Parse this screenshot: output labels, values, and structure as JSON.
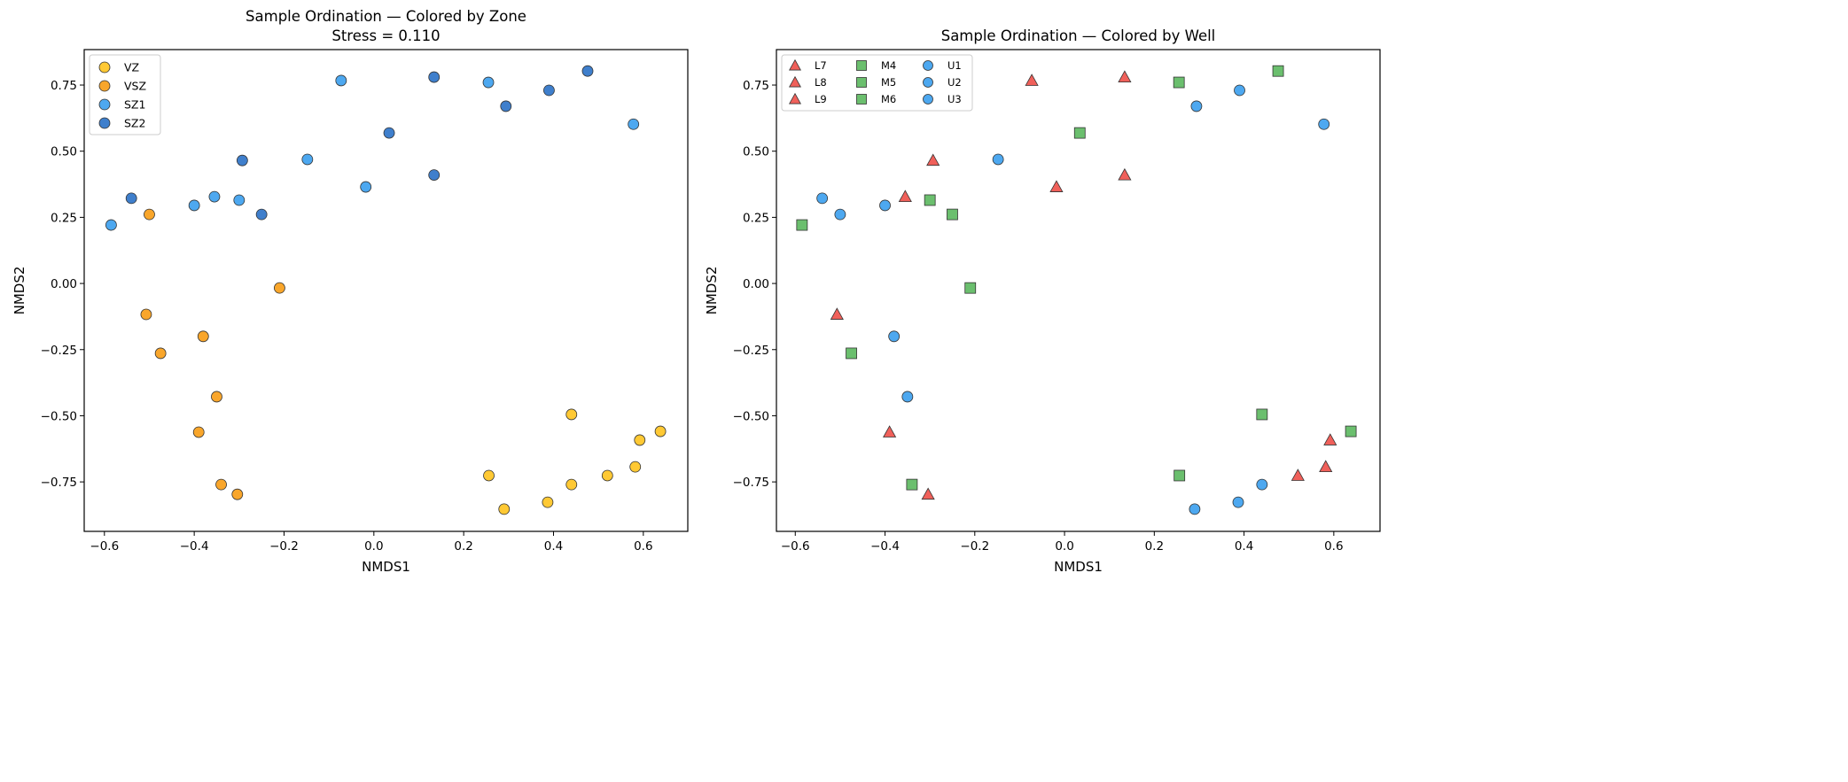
{
  "chart_data": [
    {
      "type": "scatter",
      "title": "Sample Ordination — Colored by Zone",
      "subtitle": "Stress = 0.110",
      "xlabel": "NMDS1",
      "ylabel": "NMDS2",
      "xlim": [
        -0.645,
        0.699
      ],
      "ylim": [
        -0.937,
        0.884
      ],
      "xticks": [
        "−0.6",
        "−0.4",
        "−0.2",
        "0.0",
        "0.2",
        "0.4",
        "0.6"
      ],
      "xtick_values": [
        -0.6,
        -0.4,
        -0.2,
        0.0,
        0.2,
        0.4,
        0.6
      ],
      "yticks": [
        "−0.75",
        "−0.50",
        "−0.25",
        "0.00",
        "0.25",
        "0.50",
        "0.75"
      ],
      "ytick_values": [
        -0.75,
        -0.5,
        -0.25,
        0.0,
        0.25,
        0.5,
        0.75
      ],
      "grid": false,
      "legend_placement": "upper-left",
      "legend": [
        {
          "label": "VZ",
          "color": "#FFC934",
          "marker": "circle"
        },
        {
          "label": "VSZ",
          "color": "#F9A62B",
          "marker": "circle"
        },
        {
          "label": "SZ1",
          "color": "#4DA8F0",
          "marker": "circle"
        },
        {
          "label": "SZ2",
          "color": "#3F7FCC",
          "marker": "circle"
        }
      ],
      "group_key": "zone"
    },
    {
      "type": "scatter",
      "title": "Sample Ordination — Colored by Well",
      "xlabel": "NMDS1",
      "ylabel": "NMDS2",
      "xlim": [
        -0.642,
        0.703
      ],
      "ylim": [
        -0.937,
        0.884
      ],
      "xticks": [
        "−0.6",
        "−0.4",
        "−0.2",
        "0.0",
        "0.2",
        "0.4",
        "0.6"
      ],
      "xtick_values": [
        -0.6,
        -0.4,
        -0.2,
        0.0,
        0.2,
        0.4,
        0.6
      ],
      "yticks": [
        "−0.75",
        "−0.50",
        "−0.25",
        "0.00",
        "0.25",
        "0.50",
        "0.75"
      ],
      "ytick_values": [
        -0.75,
        -0.5,
        -0.25,
        0.0,
        0.25,
        0.5,
        0.75
      ],
      "grid": false,
      "legend_placement": "upper-left",
      "legend_columns": 3,
      "legend": [
        {
          "label": "L7",
          "color": "#F0605A",
          "marker": "triangle"
        },
        {
          "label": "L8",
          "color": "#F0605A",
          "marker": "triangle"
        },
        {
          "label": "L9",
          "color": "#F0605A",
          "marker": "triangle"
        },
        {
          "label": "M4",
          "color": "#6BBF6E",
          "marker": "square"
        },
        {
          "label": "M5",
          "color": "#6BBF6E",
          "marker": "square"
        },
        {
          "label": "M6",
          "color": "#6BBF6E",
          "marker": "square"
        },
        {
          "label": "U1",
          "color": "#4DA8F0",
          "marker": "circle"
        },
        {
          "label": "U2",
          "color": "#4DA8F0",
          "marker": "circle"
        },
        {
          "label": "U3",
          "color": "#4DA8F0",
          "marker": "circle"
        }
      ],
      "well_groups": {
        "L": {
          "color": "#F0605A",
          "marker": "triangle"
        },
        "M": {
          "color": "#6BBF6E",
          "marker": "square"
        },
        "U": {
          "color": "#4DA8F0",
          "marker": "circle"
        }
      },
      "group_key": "well_group"
    }
  ],
  "points": [
    {
      "x": -0.585,
      "y": 0.221,
      "zone": "SZ1",
      "well_group": "M"
    },
    {
      "x": -0.54,
      "y": 0.322,
      "zone": "SZ2",
      "well_group": "U"
    },
    {
      "x": -0.5,
      "y": 0.261,
      "zone": "VSZ",
      "well_group": "U"
    },
    {
      "x": -0.4,
      "y": 0.295,
      "zone": "SZ1",
      "well_group": "U"
    },
    {
      "x": -0.355,
      "y": 0.328,
      "zone": "SZ1",
      "well_group": "L"
    },
    {
      "x": -0.3,
      "y": 0.315,
      "zone": "SZ1",
      "well_group": "M"
    },
    {
      "x": -0.293,
      "y": 0.465,
      "zone": "SZ2",
      "well_group": "L"
    },
    {
      "x": -0.25,
      "y": 0.261,
      "zone": "SZ2",
      "well_group": "M"
    },
    {
      "x": -0.148,
      "y": 0.469,
      "zone": "SZ1",
      "well_group": "U"
    },
    {
      "x": -0.073,
      "y": 0.767,
      "zone": "SZ1",
      "well_group": "L"
    },
    {
      "x": -0.018,
      "y": 0.365,
      "zone": "SZ1",
      "well_group": "L"
    },
    {
      "x": 0.034,
      "y": 0.569,
      "zone": "SZ2",
      "well_group": "M"
    },
    {
      "x": 0.134,
      "y": 0.78,
      "zone": "SZ2",
      "well_group": "L"
    },
    {
      "x": 0.134,
      "y": 0.41,
      "zone": "SZ2",
      "well_group": "L"
    },
    {
      "x": 0.255,
      "y": 0.76,
      "zone": "SZ1",
      "well_group": "M"
    },
    {
      "x": 0.294,
      "y": 0.67,
      "zone": "SZ2",
      "well_group": "U"
    },
    {
      "x": 0.39,
      "y": 0.73,
      "zone": "SZ2",
      "well_group": "U"
    },
    {
      "x": 0.476,
      "y": 0.803,
      "zone": "SZ2",
      "well_group": "M"
    },
    {
      "x": 0.578,
      "y": 0.602,
      "zone": "SZ1",
      "well_group": "U"
    },
    {
      "x": -0.21,
      "y": -0.017,
      "zone": "VSZ",
      "well_group": "M"
    },
    {
      "x": -0.507,
      "y": -0.117,
      "zone": "VSZ",
      "well_group": "L"
    },
    {
      "x": -0.38,
      "y": -0.2,
      "zone": "VSZ",
      "well_group": "U"
    },
    {
      "x": -0.475,
      "y": -0.264,
      "zone": "VSZ",
      "well_group": "M"
    },
    {
      "x": -0.35,
      "y": -0.428,
      "zone": "VSZ",
      "well_group": "U"
    },
    {
      "x": -0.39,
      "y": -0.562,
      "zone": "VSZ",
      "well_group": "L"
    },
    {
      "x": -0.34,
      "y": -0.76,
      "zone": "VSZ",
      "well_group": "M"
    },
    {
      "x": -0.304,
      "y": -0.797,
      "zone": "VSZ",
      "well_group": "L"
    },
    {
      "x": 0.44,
      "y": -0.495,
      "zone": "VZ",
      "well_group": "M"
    },
    {
      "x": 0.592,
      "y": -0.592,
      "zone": "VZ",
      "well_group": "L"
    },
    {
      "x": 0.638,
      "y": -0.559,
      "zone": "VZ",
      "well_group": "M"
    },
    {
      "x": 0.582,
      "y": -0.693,
      "zone": "VZ",
      "well_group": "L"
    },
    {
      "x": 0.256,
      "y": -0.726,
      "zone": "VZ",
      "well_group": "M"
    },
    {
      "x": 0.52,
      "y": -0.726,
      "zone": "VZ",
      "well_group": "L"
    },
    {
      "x": 0.44,
      "y": -0.76,
      "zone": "VZ",
      "well_group": "U"
    },
    {
      "x": 0.29,
      "y": -0.853,
      "zone": "VZ",
      "well_group": "U"
    },
    {
      "x": 0.387,
      "y": -0.827,
      "zone": "VZ",
      "well_group": "U"
    }
  ]
}
